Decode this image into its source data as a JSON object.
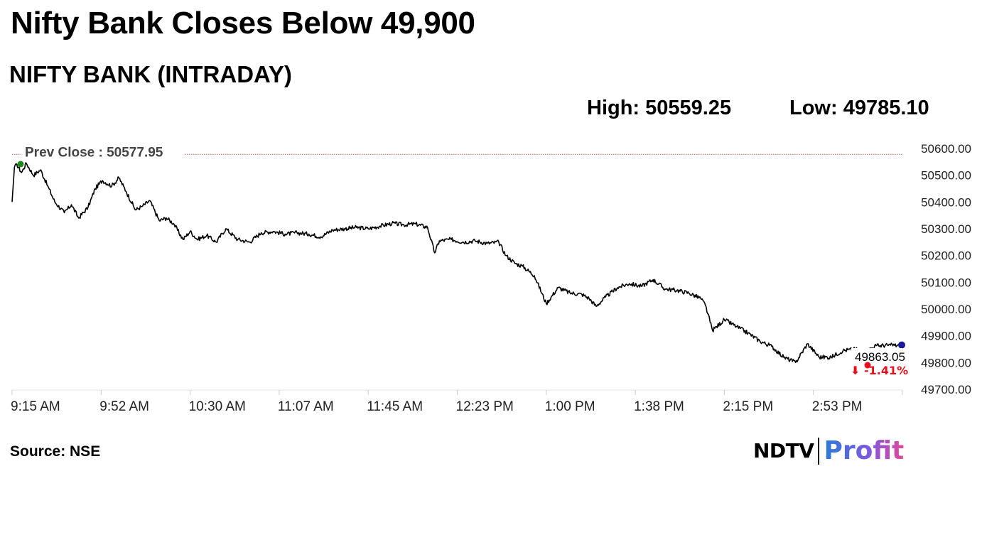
{
  "headline": "Nifty Bank Closes Below 49,900",
  "subheading": "NIFTY BANK (INTRADAY)",
  "stats": {
    "high_label": "High:",
    "high_value": "50559.25",
    "low_label": "Low:",
    "low_value": "49785.10"
  },
  "source": "Source: NSE",
  "brand": {
    "ndtv": "NDTV",
    "profit": "Profit"
  },
  "colors": {
    "line": "#000000",
    "prev_close_line": "#d9534f",
    "start_marker": "#1a8a1a",
    "last_marker": "#1a1aa0",
    "change": "#e8101c"
  },
  "chart_data": {
    "type": "line",
    "title": "NIFTY BANK (INTRADAY)",
    "ylim": [
      49700,
      50600
    ],
    "y_ticks": [
      "50600.00",
      "50500.00",
      "50400.00",
      "50300.00",
      "50200.00",
      "50100.00",
      "50000.00",
      "49900.00",
      "49800.00",
      "49700.00"
    ],
    "x_ticks": [
      "9:15 AM",
      "9:52 AM",
      "10:30 AM",
      "11:07 AM",
      "11:45 AM",
      "12:23 PM",
      "1:00 PM",
      "1:38 PM",
      "2:15 PM",
      "2:53 PM"
    ],
    "x_range_minutes": [
      0,
      375
    ],
    "prev_close": {
      "label": "Prev Close : 50577.95",
      "value": 50577.95
    },
    "last": {
      "label": "49863.05",
      "value": 49863.05,
      "change_label": "⬇ -1.41%",
      "change_arrow": "⬇"
    },
    "series": [
      {
        "x": [
          0,
          1,
          2,
          4,
          6,
          9,
          12,
          15,
          18,
          22,
          25,
          28,
          32,
          35,
          38,
          42,
          45,
          48,
          52,
          55,
          58,
          62,
          65,
          68,
          72,
          75,
          78,
          82,
          86,
          90,
          95,
          100,
          105,
          110,
          115,
          120,
          125,
          130,
          135,
          140,
          145,
          150,
          155,
          160,
          165,
          170,
          175,
          178,
          180,
          185,
          190,
          195,
          200,
          205,
          208,
          212,
          215,
          220,
          225,
          230,
          235,
          240,
          243,
          246,
          250,
          255,
          260,
          265,
          270,
          275,
          280,
          285,
          290,
          292,
          295,
          300,
          305,
          310,
          315,
          320,
          325,
          330,
          335,
          340,
          345,
          350,
          355,
          360,
          364,
          370,
          375
        ],
        "y": [
          50400,
          50530,
          50540,
          50510,
          50545,
          50500,
          50520,
          50460,
          50400,
          50360,
          50390,
          50340,
          50380,
          50450,
          50480,
          50460,
          50490,
          50440,
          50370,
          50385,
          50405,
          50330,
          50340,
          50320,
          50260,
          50290,
          50260,
          50275,
          50250,
          50300,
          50260,
          50250,
          50285,
          50290,
          50280,
          50285,
          50280,
          50270,
          50295,
          50300,
          50305,
          50300,
          50310,
          50320,
          50315,
          50318,
          50305,
          50210,
          50255,
          50260,
          50250,
          50255,
          50245,
          50250,
          50200,
          50170,
          50160,
          50125,
          50020,
          50080,
          50060,
          50055,
          50040,
          50010,
          50045,
          50080,
          50095,
          50085,
          50110,
          50075,
          50070,
          50060,
          50040,
          50015,
          49920,
          49960,
          49935,
          49910,
          49880,
          49860,
          49820,
          49800,
          49870,
          49820,
          49820,
          49845,
          49850,
          49845,
          49863.05,
          49865,
          49863.05
        ]
      }
    ]
  }
}
